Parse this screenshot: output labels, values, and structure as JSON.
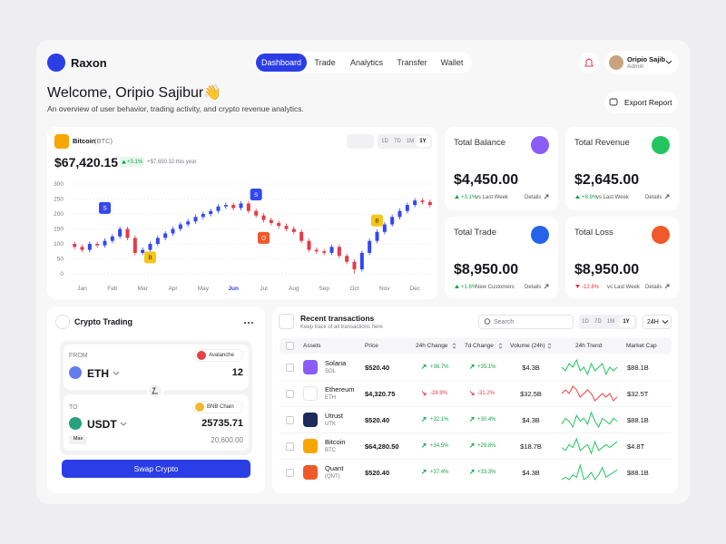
{
  "nav": {
    "brand": "Raxon",
    "tabs": [
      "Dashboard",
      "Trade",
      "Analytics",
      "Transfer",
      "Wallet"
    ],
    "active_tab": 0,
    "user_name": "Oripio Sajib",
    "user_role": "Admin"
  },
  "header": {
    "title": "Welcome, Oripio Sajibur👋",
    "subtitle": "An overview of user behavior, trading activity, and crypto revenue analytics.",
    "export_button": "Export Report"
  },
  "bitcoin_card": {
    "name": "Bitcoin",
    "ticker": "(BTC)",
    "price": "$67,420.15",
    "change": "+3.1%",
    "change_note": "+$7,650.32 this year",
    "ranges": [
      "1D",
      "7D",
      "1M",
      "1Y"
    ],
    "active_range": 3
  },
  "chart_data": {
    "type": "candlestick",
    "categories": [
      null,
      "Jan",
      null,
      null,
      null,
      "Feb",
      null,
      null,
      null,
      "Mar",
      null,
      null,
      null,
      "Apr",
      null,
      null,
      null,
      "May",
      null,
      null,
      null,
      "Jun",
      null,
      null,
      null,
      "Jul",
      null,
      null,
      null,
      "Aug",
      null,
      null,
      null,
      "Sep",
      null,
      null,
      null,
      "Oct",
      null,
      null,
      null,
      "Nov",
      null,
      null,
      null,
      "Dec",
      null,
      null
    ],
    "open": [
      100,
      90,
      80,
      100,
      95,
      110,
      125,
      150,
      120,
      70,
      80,
      100,
      120,
      135,
      150,
      165,
      175,
      190,
      200,
      210,
      225,
      230,
      220,
      235,
      210,
      195,
      180,
      170,
      160,
      150,
      140,
      110,
      80,
      75,
      70,
      90,
      60,
      40,
      15,
      70,
      110,
      140,
      165,
      190,
      210,
      230,
      245,
      240
    ],
    "high": [
      108,
      98,
      108,
      108,
      118,
      133,
      158,
      158,
      128,
      88,
      108,
      128,
      143,
      158,
      173,
      183,
      198,
      208,
      218,
      233,
      238,
      238,
      243,
      243,
      218,
      203,
      188,
      178,
      168,
      158,
      148,
      118,
      88,
      83,
      98,
      98,
      68,
      48,
      78,
      118,
      148,
      173,
      198,
      218,
      238,
      253,
      253,
      248
    ],
    "low": [
      82,
      72,
      72,
      87,
      87,
      102,
      117,
      112,
      62,
      62,
      72,
      92,
      112,
      127,
      142,
      157,
      167,
      182,
      192,
      202,
      217,
      212,
      212,
      202,
      187,
      172,
      162,
      152,
      142,
      132,
      102,
      72,
      67,
      62,
      62,
      52,
      32,
      0,
      7,
      62,
      102,
      132,
      157,
      182,
      202,
      222,
      232,
      222
    ],
    "close": [
      90,
      80,
      100,
      95,
      110,
      125,
      150,
      120,
      70,
      80,
      100,
      120,
      135,
      150,
      165,
      175,
      190,
      200,
      210,
      225,
      230,
      220,
      235,
      210,
      195,
      180,
      170,
      160,
      150,
      140,
      110,
      80,
      75,
      70,
      90,
      60,
      40,
      15,
      70,
      110,
      140,
      165,
      190,
      210,
      230,
      245,
      240,
      230
    ],
    "up_color": "#3347f0",
    "down_color": "#e63946",
    "ylim": [
      0,
      300
    ],
    "yticks": [
      0,
      50,
      100,
      150,
      200,
      250,
      300
    ],
    "grid": true,
    "highlight_index": 21,
    "annotations": [
      {
        "text": "S",
        "x": 4,
        "y": 220,
        "color": "#3347f0",
        "text_color": "#ffffff"
      },
      {
        "text": "B",
        "x": 10,
        "y": 55,
        "color": "#f5c518",
        "text_color": "#3a2e00"
      },
      {
        "text": "S",
        "x": 24,
        "y": 265,
        "color": "#3347f0",
        "text_color": "#ffffff"
      },
      {
        "text": "O",
        "x": 25,
        "y": 120,
        "color": "#f0592a",
        "text_color": "#ffffff"
      },
      {
        "text": "B",
        "x": 40,
        "y": 178,
        "color": "#f5c518",
        "text_color": "#3a2e00"
      }
    ]
  },
  "stats": [
    {
      "title": "Total Balance",
      "value": "$4,450.00",
      "change": "+3.1%",
      "note": "vs Last Week",
      "link": "Details",
      "direction": "up",
      "icon_color": "#8b5cf6"
    },
    {
      "title": "Total Revenue",
      "value": "$2,645.00",
      "change": "+8.9%",
      "note": "vs Last Week",
      "link": "Details",
      "direction": "up",
      "icon_color": "#22c55e"
    },
    {
      "title": "Total Trade",
      "value": "$8,950.00",
      "change": "+1.8%",
      "note": "New Customers",
      "link": "Details",
      "direction": "up",
      "icon_color": "#2563eb"
    },
    {
      "title": "Total Loss",
      "value": "$8,950.00",
      "change": "-12.8%",
      "note": "vs Last Week",
      "link": "Details",
      "direction": "down",
      "icon_color": "#f0592a"
    }
  ],
  "swap": {
    "title": "Crypto Trading",
    "from_label": "FROM",
    "from_network": "Avalanche",
    "from_asset": "ETH",
    "from_amount": "12",
    "to_label": "TO",
    "to_network": "BNB Chain",
    "to_asset": "USDT",
    "to_amount": "25735.71",
    "to_fiat": "20,600.00",
    "max": "Max",
    "button": "Swap Crypto"
  },
  "transactions": {
    "title": "Recent transactions",
    "subtitle": "Keep track of all transactions here",
    "search": "Search",
    "ranges": [
      "1D",
      "7D",
      "1M",
      "1Y"
    ],
    "active_range": 3,
    "period": "24H",
    "columns": [
      "Assets",
      "Price",
      "24h Change",
      "7d Change",
      "Volume (24h)",
      "24h Trend",
      "Market Cap"
    ],
    "rows": [
      {
        "name": "Solana",
        "symbol": "SOL",
        "price": "$520.40",
        "change_24h": "+36.7%",
        "change_7d": "+35.1%",
        "volume": "$4.3B",
        "market_cap": "$88.1B",
        "direction": "up",
        "icon_color": "#8b5cf6",
        "trend": [
          6,
          5,
          7,
          6,
          8,
          5,
          6,
          4,
          7,
          5,
          6,
          7,
          4,
          6,
          5,
          6
        ],
        "trend_color": "#22c55e"
      },
      {
        "name": "Ethereum",
        "symbol": "ETH",
        "price": "$4,320.75",
        "change_24h": "-28.9%",
        "change_7d": "-31.2%",
        "volume": "$32.5B",
        "market_cap": "$32.5T",
        "direction": "down",
        "icon_color": "#ffffff",
        "trend": [
          5,
          6,
          5,
          7,
          6,
          4,
          5,
          6,
          5,
          3,
          4,
          5,
          4,
          5,
          3,
          4
        ],
        "trend_color": "#ef4444"
      },
      {
        "name": "Utrust",
        "symbol": "UTK",
        "price": "$520.40",
        "change_24h": "+32.1%",
        "change_7d": "+30.4%",
        "volume": "$4.3B",
        "market_cap": "$88.1B",
        "direction": "up",
        "icon_color": "#1e2a5a",
        "trend": [
          4,
          6,
          5,
          3,
          7,
          5,
          6,
          4,
          8,
          5,
          3,
          6,
          5,
          4,
          6,
          5
        ],
        "trend_color": "#22c55e"
      },
      {
        "name": "Bitcoin",
        "symbol": "BTC",
        "price": "$64,280.50",
        "change_24h": "+34.5%",
        "change_7d": "+29.8%",
        "volume": "$18.7B",
        "market_cap": "$4.8T",
        "direction": "up",
        "icon_color": "#f7a600",
        "trend": [
          5,
          4,
          6,
          5,
          8,
          4,
          5,
          6,
          3,
          7,
          4,
          5,
          6,
          5,
          6,
          7
        ],
        "trend_color": "#22c55e"
      },
      {
        "name": "Quant",
        "symbol": "(QNT)",
        "price": "$520.40",
        "change_24h": "+37.4%",
        "change_7d": "+33.3%",
        "volume": "$4.3B",
        "market_cap": "$88.1B",
        "direction": "up",
        "icon_color": "#f0592a",
        "trend": [
          3,
          4,
          3,
          5,
          4,
          9,
          3,
          4,
          6,
          3,
          5,
          8,
          4,
          5,
          6,
          7
        ],
        "trend_color": "#22c55e"
      }
    ]
  }
}
